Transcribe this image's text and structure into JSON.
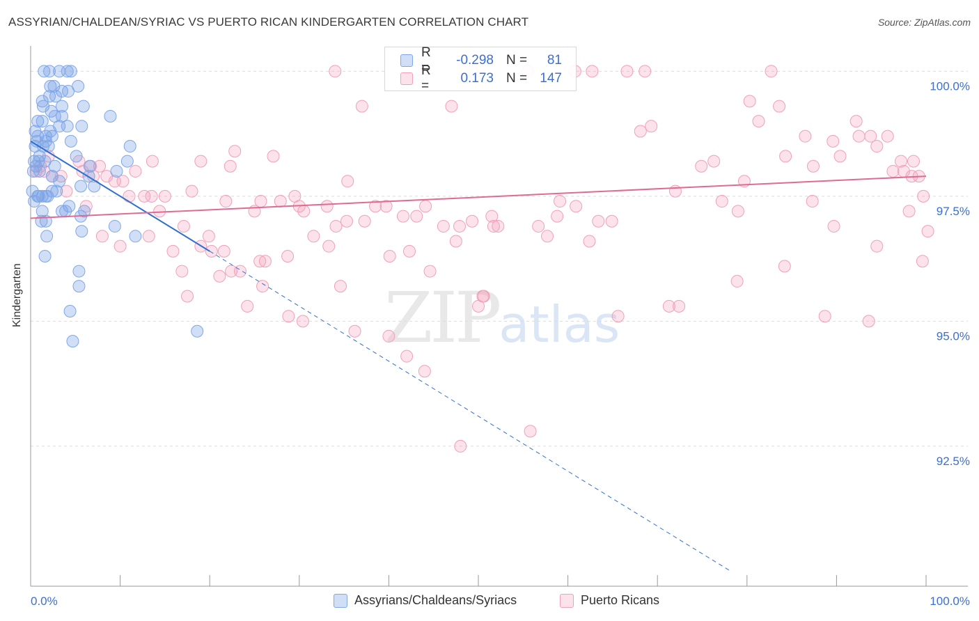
{
  "title": "ASSYRIAN/CHALDEAN/SYRIAC VS PUERTO RICAN KINDERGARTEN CORRELATION CHART",
  "source": "Source: ZipAtlas.com",
  "watermark": {
    "zip": "ZIP",
    "atlas": "atlas"
  },
  "colors": {
    "blue": "#7fa7e8",
    "blue_fill": "rgba(120,160,230,0.35)",
    "blue_line": "#2f6fd0",
    "pink": "#f0a0b8",
    "pink_fill": "rgba(245,160,185,0.30)",
    "pink_line": "#e06a92",
    "axis_text": "#3c6fd1",
    "grid": "#dcdcdc"
  },
  "legend_top": {
    "rows": [
      {
        "series": "blue",
        "r_label": "R =",
        "r_value": "-0.298",
        "n_label": "N =",
        "n_value": "81"
      },
      {
        "series": "pink",
        "r_label": "R =",
        "r_value": "0.173",
        "n_label": "N =",
        "n_value": "147"
      }
    ]
  },
  "legend_bottom": [
    {
      "series": "blue",
      "label": "Assyrians/Chaldeans/Syriacs"
    },
    {
      "series": "pink",
      "label": "Puerto Ricans"
    }
  ],
  "chart_data": {
    "type": "scatter",
    "title": "ASSYRIAN/CHALDEAN/SYRIAC VS PUERTO RICAN KINDERGARTEN CORRELATION CHART",
    "xlabel": "",
    "ylabel": "Kindergarten",
    "xlim": [
      0,
      100
    ],
    "ylim": [
      89.7,
      100.45
    ],
    "x_tick_labels": [
      "0.0%",
      "100.0%"
    ],
    "y_ticks": [
      92.5,
      95.0,
      97.5,
      100.0
    ],
    "y_tick_labels": [
      "92.5%",
      "95.0%",
      "97.5%",
      "100.0%"
    ],
    "grid": "horizontal dashed",
    "series": [
      {
        "name": "Assyrians/Chaldeans/Syriacs",
        "color": "blue",
        "trend": {
          "x0": 0,
          "y0": 98.6,
          "x1": 20,
          "y1": 96.4,
          "dashed_to_x": 78
        },
        "points": [
          [
            1.5,
            100
          ],
          [
            2.1,
            100
          ],
          [
            3.2,
            100
          ],
          [
            4.1,
            100
          ],
          [
            4.5,
            100
          ],
          [
            2.2,
            99.7
          ],
          [
            2.6,
            99.7
          ],
          [
            3.5,
            99.6
          ],
          [
            4.2,
            99.6
          ],
          [
            5.3,
            99.7
          ],
          [
            2.1,
            99.5
          ],
          [
            1.3,
            99.4
          ],
          [
            2.8,
            99.5
          ],
          [
            1.4,
            99.3
          ],
          [
            3.5,
            99.3
          ],
          [
            5.9,
            99.3
          ],
          [
            2.3,
            99.2
          ],
          [
            2.7,
            99.1
          ],
          [
            8.9,
            99.1
          ],
          [
            0.8,
            99.0
          ],
          [
            1.3,
            99.0
          ],
          [
            3.2,
            98.9
          ],
          [
            4.1,
            98.9
          ],
          [
            5.7,
            98.9
          ],
          [
            0.8,
            98.7
          ],
          [
            1.7,
            98.7
          ],
          [
            2.4,
            98.7
          ],
          [
            1.7,
            98.6
          ],
          [
            4.5,
            98.6
          ],
          [
            0.5,
            98.5
          ],
          [
            1.4,
            98.5
          ],
          [
            2.0,
            98.5
          ],
          [
            11.1,
            98.5
          ],
          [
            1.0,
            98.3
          ],
          [
            5.1,
            98.3
          ],
          [
            0.4,
            98.2
          ],
          [
            0.9,
            98.2
          ],
          [
            1.6,
            98.2
          ],
          [
            0.6,
            98.1
          ],
          [
            10.8,
            98.2
          ],
          [
            2.7,
            98.1
          ],
          [
            6.6,
            98.1
          ],
          [
            0.3,
            98.0
          ],
          [
            1.0,
            98.0
          ],
          [
            9.6,
            98.0
          ],
          [
            6.5,
            97.9
          ],
          [
            2.4,
            97.9
          ],
          [
            3.2,
            97.8
          ],
          [
            5.6,
            97.7
          ],
          [
            7.1,
            97.7
          ],
          [
            0.2,
            97.6
          ],
          [
            2.4,
            97.6
          ],
          [
            2.9,
            97.6
          ],
          [
            0.8,
            97.5
          ],
          [
            1.3,
            97.5
          ],
          [
            1.7,
            97.5
          ],
          [
            0.4,
            97.4
          ],
          [
            0.9,
            97.5
          ],
          [
            1.9,
            97.5
          ],
          [
            4.3,
            97.3
          ],
          [
            3.5,
            97.2
          ],
          [
            6.0,
            97.2
          ],
          [
            1.3,
            97.2
          ],
          [
            5.6,
            97.1
          ],
          [
            1.7,
            97.0
          ],
          [
            9.4,
            96.9
          ],
          [
            11.7,
            96.7
          ],
          [
            5.7,
            96.8
          ],
          [
            1.8,
            96.7
          ],
          [
            1.6,
            96.3
          ],
          [
            5.4,
            96.0
          ],
          [
            5.4,
            95.7
          ],
          [
            4.4,
            95.2
          ],
          [
            4.7,
            94.6
          ],
          [
            18.6,
            94.8
          ],
          [
            0.5,
            98.8
          ],
          [
            1.2,
            97.0
          ],
          [
            3.9,
            97.2
          ],
          [
            2.2,
            98.8
          ],
          [
            0.7,
            98.6
          ],
          [
            3.5,
            99.1
          ]
        ]
      },
      {
        "name": "Puerto Ricans",
        "color": "pink",
        "trend": {
          "x0": 0,
          "y0": 97.06,
          "x1": 100,
          "y1": 97.9
        },
        "points": [
          [
            34.0,
            100
          ],
          [
            49.3,
            100
          ],
          [
            55.5,
            100
          ],
          [
            60.8,
            100
          ],
          [
            62.7,
            100
          ],
          [
            66.6,
            100
          ],
          [
            68.6,
            100
          ],
          [
            82.7,
            100
          ],
          [
            37.0,
            99.3
          ],
          [
            80.3,
            99.4
          ],
          [
            83.6,
            99.3
          ],
          [
            47.0,
            99.3
          ],
          [
            92.2,
            99.0
          ],
          [
            81.3,
            99.0
          ],
          [
            68.1,
            98.8
          ],
          [
            69.3,
            98.9
          ],
          [
            86.5,
            98.7
          ],
          [
            89.6,
            98.6
          ],
          [
            92.5,
            98.7
          ],
          [
            93.8,
            98.7
          ],
          [
            95.7,
            98.7
          ],
          [
            22.8,
            98.4
          ],
          [
            27.1,
            98.3
          ],
          [
            74.9,
            98.1
          ],
          [
            76.3,
            98.2
          ],
          [
            84.3,
            98.3
          ],
          [
            87.4,
            98.1
          ],
          [
            90.4,
            98.3
          ],
          [
            94.5,
            98.5
          ],
          [
            97.2,
            98.2
          ],
          [
            98.6,
            98.2
          ],
          [
            13.6,
            98.2
          ],
          [
            19.0,
            98.2
          ],
          [
            6.7,
            98.1
          ],
          [
            9.4,
            97.8
          ],
          [
            11.7,
            98.0
          ],
          [
            12.7,
            97.5
          ],
          [
            13.5,
            97.5
          ],
          [
            18.0,
            97.6
          ],
          [
            22.3,
            98.1
          ],
          [
            21.8,
            97.4
          ],
          [
            25.0,
            97.2
          ],
          [
            25.7,
            97.4
          ],
          [
            27.9,
            97.4
          ],
          [
            29.5,
            97.5
          ],
          [
            30.0,
            97.3
          ],
          [
            30.5,
            97.2
          ],
          [
            35.4,
            97.8
          ],
          [
            31.6,
            96.7
          ],
          [
            33.3,
            96.5
          ],
          [
            35.3,
            97.0
          ],
          [
            41.6,
            97.1
          ],
          [
            43.1,
            97.1
          ],
          [
            46.1,
            96.9
          ],
          [
            47.5,
            96.6
          ],
          [
            49.3,
            97.0
          ],
          [
            51.7,
            96.9
          ],
          [
            56.7,
            96.9
          ],
          [
            59.1,
            97.4
          ],
          [
            60.9,
            97.3
          ],
          [
            64.9,
            97.0
          ],
          [
            62.4,
            96.6
          ],
          [
            51.5,
            97.1
          ],
          [
            52.2,
            96.9
          ],
          [
            44.1,
            97.3
          ],
          [
            42.3,
            96.4
          ],
          [
            44.6,
            96.0
          ],
          [
            37.3,
            97.0
          ],
          [
            38.5,
            97.3
          ],
          [
            39.7,
            97.3
          ],
          [
            33.1,
            97.3
          ],
          [
            15.0,
            97.5
          ],
          [
            14.4,
            97.2
          ],
          [
            17.1,
            96.9
          ],
          [
            19.0,
            96.5
          ],
          [
            20.2,
            96.4
          ],
          [
            21.6,
            96.4
          ],
          [
            19.9,
            96.7
          ],
          [
            25.6,
            96.2
          ],
          [
            28.7,
            96.3
          ],
          [
            34.1,
            96.9
          ],
          [
            40.1,
            96.3
          ],
          [
            26.2,
            96.2
          ],
          [
            25.9,
            95.7
          ],
          [
            21.1,
            95.9
          ],
          [
            22.4,
            96.0
          ],
          [
            23.4,
            96.0
          ],
          [
            17.5,
            95.5
          ],
          [
            24.2,
            95.3
          ],
          [
            28.8,
            95.1
          ],
          [
            30.4,
            95.0
          ],
          [
            36.2,
            94.8
          ],
          [
            40.0,
            94.7
          ],
          [
            42.0,
            94.3
          ],
          [
            44.0,
            94.0
          ],
          [
            55.8,
            92.8
          ],
          [
            48.0,
            92.5
          ],
          [
            50.0,
            95.3
          ],
          [
            50.5,
            95.5
          ],
          [
            65.6,
            95.1
          ],
          [
            71.3,
            95.3
          ],
          [
            72.4,
            95.3
          ],
          [
            78.9,
            95.8
          ],
          [
            84.2,
            96.1
          ],
          [
            88.7,
            95.1
          ],
          [
            93.6,
            95.0
          ],
          [
            94.5,
            96.5
          ],
          [
            99.6,
            96.2
          ],
          [
            98.1,
            97.2
          ],
          [
            100.2,
            96.8
          ],
          [
            96.3,
            98.0
          ],
          [
            97.5,
            98.0
          ],
          [
            98.4,
            97.9
          ],
          [
            99.2,
            97.9
          ],
          [
            99.7,
            97.5
          ],
          [
            87.3,
            97.4
          ],
          [
            89.7,
            96.9
          ],
          [
            79.0,
            97.2
          ],
          [
            79.7,
            97.8
          ],
          [
            72.0,
            97.6
          ],
          [
            5.8,
            98.0
          ],
          [
            6.2,
            97.3
          ],
          [
            7.7,
            98.1
          ],
          [
            8.5,
            97.9
          ],
          [
            10.3,
            97.8
          ],
          [
            11.0,
            97.5
          ],
          [
            15.9,
            96.4
          ],
          [
            16.9,
            96.0
          ],
          [
            13.2,
            96.7
          ],
          [
            10.0,
            96.5
          ],
          [
            8.0,
            96.7
          ],
          [
            4.0,
            97.6
          ],
          [
            3.4,
            97.9
          ],
          [
            1.5,
            98.0
          ],
          [
            2.4,
            97.9
          ],
          [
            1.1,
            98.1
          ],
          [
            0.6,
            98.0
          ],
          [
            2.0,
            98.3
          ],
          [
            5.4,
            98.2
          ],
          [
            7.0,
            97.9
          ],
          [
            50.6,
            95.5
          ],
          [
            34.6,
            95.7
          ],
          [
            47.9,
            96.9
          ],
          [
            57.7,
            96.7
          ],
          [
            58.8,
            97.1
          ],
          [
            63.4,
            97.0
          ],
          [
            77.2,
            97.4
          ]
        ]
      }
    ]
  }
}
